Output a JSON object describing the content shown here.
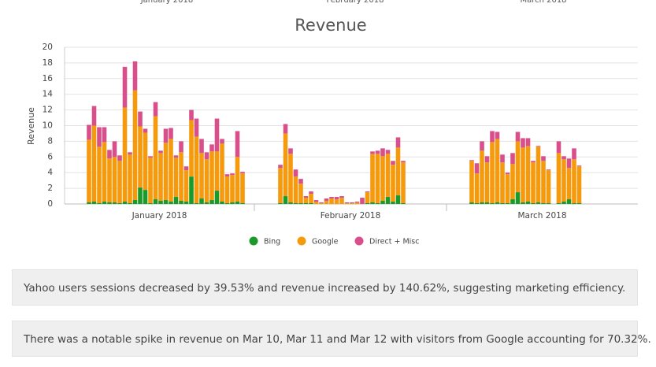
{
  "header_tabs": [
    "January 2018",
    "February 2018",
    "March 2018"
  ],
  "chart_data": {
    "type": "bar",
    "stacked": true,
    "title": "Revenue",
    "ylabel": "Revenue",
    "ylim": [
      0,
      20
    ],
    "yticks": [
      0,
      2,
      4,
      6,
      8,
      10,
      12,
      14,
      16,
      18,
      20
    ],
    "grid": true,
    "legend": "bottom",
    "categories": [
      null,
      null,
      null,
      null,
      null,
      null,
      null,
      null,
      null,
      null,
      null,
      null,
      null,
      null,
      null,
      "January 2018",
      null,
      null,
      null,
      null,
      null,
      null,
      null,
      null,
      null,
      null,
      null,
      null,
      null,
      null,
      null,
      null,
      null,
      null,
      null,
      null,
      null,
      null,
      null,
      null,
      null,
      null,
      null,
      null,
      "February 2018",
      null,
      null,
      null,
      null,
      null,
      null,
      null,
      null,
      null,
      null,
      null,
      null,
      null,
      null,
      null,
      null,
      null,
      null,
      null,
      null,
      null,
      null,
      null,
      null,
      null,
      null,
      null,
      null,
      null,
      "March 2018",
      null,
      null,
      null,
      null,
      null,
      null,
      null,
      null,
      null,
      null,
      null,
      null,
      null,
      null,
      null
    ],
    "series": [
      {
        "name": "Bing",
        "color": "#1a9a2a",
        "values": [
          0.2,
          0.3,
          0.1,
          0.3,
          0.2,
          0.2,
          0.1,
          0.3,
          0.1,
          0.5,
          2.1,
          1.8,
          0.1,
          0.6,
          0.4,
          0.5,
          0.3,
          0.9,
          0.4,
          0.3,
          3.5,
          0.1,
          0.7,
          0.2,
          0.5,
          1.7,
          0.3,
          0.1,
          0.2,
          0.3,
          0.1,
          0.1,
          1.0,
          0.2,
          0.1,
          0.1,
          0.1,
          0.1,
          0,
          0,
          0,
          0,
          0,
          0,
          0,
          0,
          0,
          0,
          0.1,
          0.2,
          0.1,
          0.4,
          0.9,
          0.3,
          1.1,
          0.1,
          null,
          null,
          null,
          0.2,
          0.1,
          0.2,
          0.2,
          0.1,
          0.2,
          0.1,
          0.1,
          0.6,
          1.5,
          0.2,
          0.3,
          0.1,
          0.2,
          0.1,
          0.1,
          null,
          0.1,
          0.3,
          0.6,
          0.1,
          0.1,
          null,
          null,
          null,
          null,
          null,
          null,
          null,
          null,
          null
        ]
      },
      {
        "name": "Google",
        "color": "#f59a0c",
        "values": [
          8.0,
          9.7,
          7.2,
          7.6,
          5.6,
          5.8,
          5.4,
          12.0,
          6.2,
          14.0,
          7.8,
          7.3,
          5.8,
          10.6,
          6.1,
          7.3,
          8.0,
          5.0,
          6.2,
          4.0,
          7.2,
          8.5,
          5.8,
          5.5,
          6.2,
          5.0,
          7.4,
          3.4,
          3.5,
          5.7,
          3.8,
          4.5,
          8.0,
          6.2,
          3.4,
          2.5,
          0.7,
          1.2,
          0.3,
          0.1,
          0.4,
          0.7,
          0.6,
          0.8,
          0.1,
          0.1,
          0.2,
          0,
          1.4,
          6.2,
          6.3,
          5.7,
          5.5,
          4.7,
          6.1,
          5.2,
          null,
          null,
          null,
          5.3,
          3.8,
          6.6,
          5.1,
          7.8,
          8.1,
          5.2,
          3.7,
          4.5,
          6.5,
          7.0,
          7.1,
          5.2,
          7.1,
          5.4,
          4.2,
          null,
          6.4,
          5.4,
          4.0,
          5.6,
          4.7,
          null,
          null,
          null,
          null,
          null,
          null,
          null,
          null,
          null
        ]
      },
      {
        "name": "Direct + Misc",
        "color": "#d94f8c",
        "values": [
          1.9,
          2.5,
          2.5,
          1.9,
          1.1,
          2.0,
          0.7,
          5.2,
          0.3,
          3.7,
          1.9,
          0.5,
          0.2,
          1.8,
          0.3,
          1.8,
          1.4,
          0.3,
          1.4,
          0.5,
          1.3,
          2.3,
          1.8,
          0.9,
          0.9,
          4.2,
          0.6,
          0.3,
          0.2,
          3.3,
          0.2,
          0.4,
          1.2,
          0.7,
          0.9,
          0.6,
          0.2,
          0.3,
          0.2,
          0.1,
          0.3,
          0.2,
          0.3,
          0.2,
          0.1,
          0.1,
          0.1,
          0.8,
          0.1,
          0.3,
          0.4,
          1.0,
          0.5,
          0.5,
          1.3,
          0.2,
          null,
          null,
          null,
          0.1,
          1.3,
          1.2,
          0.8,
          1.4,
          0.9,
          1.0,
          0.2,
          1.4,
          1.2,
          1.2,
          1.0,
          0.2,
          0.1,
          0.6,
          0.1,
          null,
          1.5,
          0.4,
          1.2,
          1.4,
          0.1,
          null,
          null,
          null,
          null,
          null,
          null,
          null,
          null,
          null
        ]
      }
    ]
  },
  "insights": [
    "Yahoo users sessions decreased by 39.53% and revenue increased by 140.62%, suggesting marketing efficiency.",
    "There was a notable spike in revenue on Mar 10, Mar 11 and Mar 12 with visitors from Google accounting for 70.32%."
  ]
}
